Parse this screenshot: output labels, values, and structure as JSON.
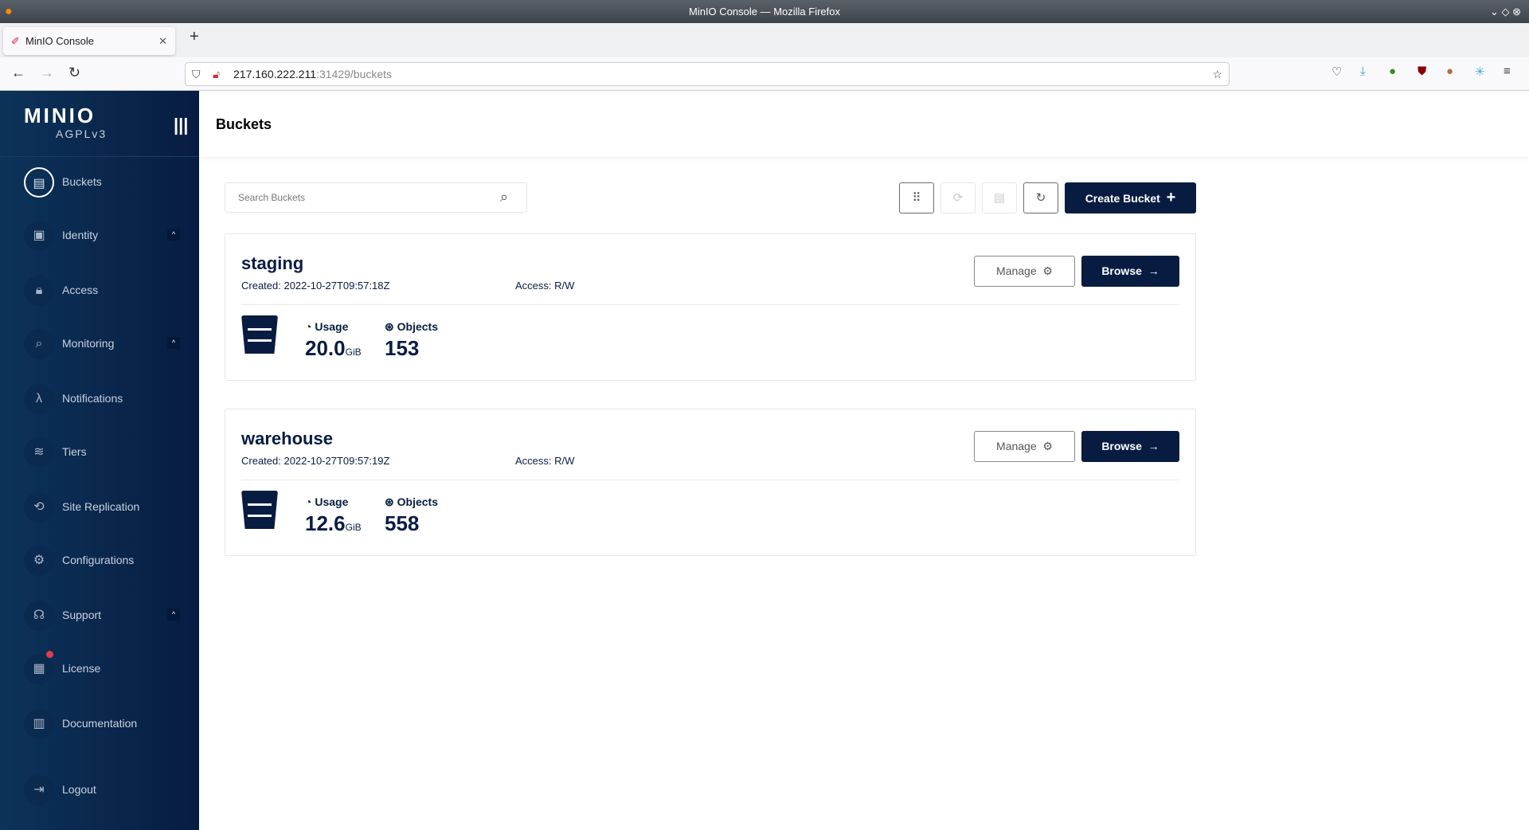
{
  "browser": {
    "window_title": "MinIO Console — Mozilla Firefox",
    "tab_title": "MinIO Console",
    "url_host": "217.160.222.211",
    "url_path": ":31429/buckets"
  },
  "sidebar": {
    "logo": "MINIO",
    "license": "AGPLv3",
    "items": [
      {
        "label": "Buckets",
        "icon": "bucket-icon",
        "active": true
      },
      {
        "label": "Identity",
        "icon": "id-card-icon",
        "expandable": true
      },
      {
        "label": "Access",
        "icon": "lock-icon"
      },
      {
        "label": "Monitoring",
        "icon": "monitoring-icon",
        "expandable": true
      },
      {
        "label": "Notifications",
        "icon": "lambda-icon"
      },
      {
        "label": "Tiers",
        "icon": "layers-icon"
      },
      {
        "label": "Site Replication",
        "icon": "replication-icon"
      },
      {
        "label": "Configurations",
        "icon": "gear-icon"
      },
      {
        "label": "Support",
        "icon": "support-icon",
        "expandable": true
      },
      {
        "label": "License",
        "icon": "license-icon",
        "badge": true
      },
      {
        "label": "Documentation",
        "icon": "document-icon"
      },
      {
        "label": "Logout",
        "icon": "logout-icon"
      }
    ]
  },
  "header": {
    "title": "Buckets"
  },
  "toolbar": {
    "search_placeholder": "Search Buckets",
    "create_label": "Create Bucket"
  },
  "buckets": [
    {
      "name": "staging",
      "created": "Created: 2022-10-27T09:57:18Z",
      "access": "Access: R/W",
      "usage_label": "Usage",
      "usage": "20.0",
      "usage_unit": "GiB",
      "objects_label": "Objects",
      "objects": "153",
      "manage": "Manage",
      "browse": "Browse"
    },
    {
      "name": "warehouse",
      "created": "Created: 2022-10-27T09:57:19Z",
      "access": "Access: R/W",
      "usage_label": "Usage",
      "usage": "12.6",
      "usage_unit": "GiB",
      "objects_label": "Objects",
      "objects": "558",
      "manage": "Manage",
      "browse": "Browse"
    }
  ]
}
